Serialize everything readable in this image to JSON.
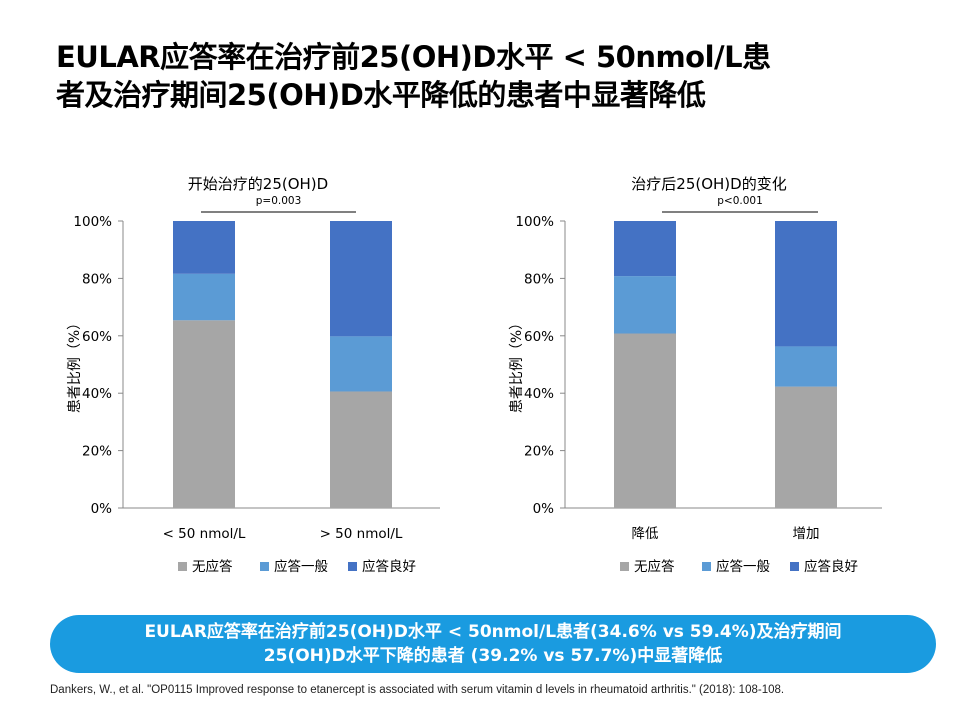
{
  "title": {
    "line1": "EULAR应答率在治疗前25(OH)D水平 < 50nmol/L患",
    "line2": "者及治疗期间25(OH)D水平降低的患者中显著降低"
  },
  "chart_data": [
    {
      "type": "bar",
      "stacked": true,
      "title": "开始治疗的25(OH)D",
      "significance": "p=0.003",
      "ylabel": "患者比例（%）",
      "ylim": [
        0,
        100
      ],
      "yticks": [
        "0%",
        "20%",
        "40%",
        "60%",
        "80%",
        "100%"
      ],
      "categories": [
        "< 50 nmol/L",
        "> 50 nmol/L"
      ],
      "series": [
        {
          "name": "无应答",
          "color": "#a6a6a6",
          "values": [
            65.4,
            40.6
          ]
        },
        {
          "name": "应答一般",
          "color": "#5b9bd5",
          "values": [
            16.2,
            19.2
          ]
        },
        {
          "name": "应答良好",
          "color": "#4472c4",
          "values": [
            18.4,
            40.2
          ]
        }
      ],
      "legend_position": "bottom",
      "grid": false
    },
    {
      "type": "bar",
      "stacked": true,
      "title": "治疗后25(OH)D的变化",
      "significance": "p<0.001",
      "ylabel": "患者比例（%）",
      "ylim": [
        0,
        100
      ],
      "yticks": [
        "0%",
        "20%",
        "40%",
        "60%",
        "80%",
        "100%"
      ],
      "categories": [
        "降低",
        "增加"
      ],
      "series": [
        {
          "name": "无应答",
          "color": "#a6a6a6",
          "values": [
            60.8,
            42.3
          ]
        },
        {
          "name": "应答一般",
          "color": "#5b9bd5",
          "values": [
            20.0,
            14.0
          ]
        },
        {
          "name": "应答良好",
          "color": "#4472c4",
          "values": [
            19.2,
            43.7
          ]
        }
      ],
      "legend_position": "bottom",
      "grid": false
    }
  ],
  "banner": {
    "line1": "EULAR应答率在治疗前25(OH)D水平 < 50nmol/L患者(34.6%  vs 59.4%)及治疗期间",
    "line2": "25(OH)D水平下降的患者  (39.2% vs 57.7%)中显著降低"
  },
  "reference": "Dankers, W., et al. \"OP0115 Improved  response to etanercept  is associated with serum vitamin  d levels in rheumatoid  arthritis.\" (2018):  108-108."
}
